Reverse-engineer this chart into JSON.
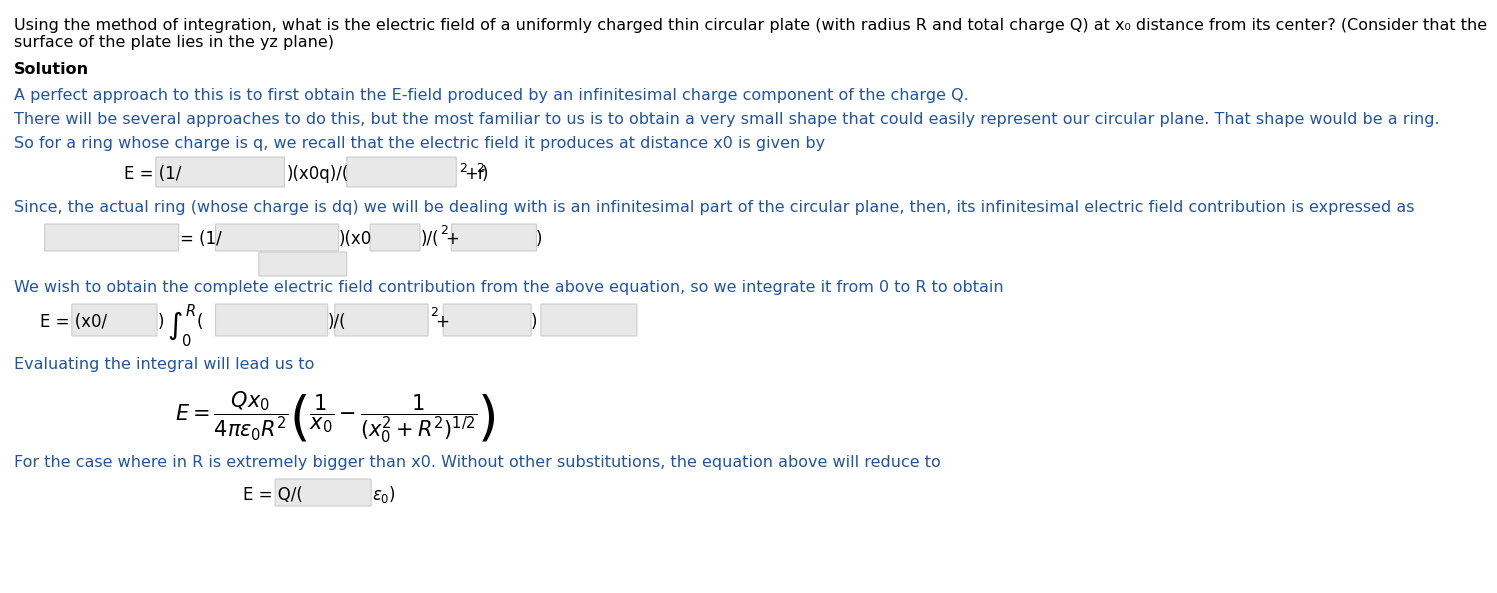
{
  "bg_color": "#ffffff",
  "text_color": "#2155a0",
  "bold_color": "#000000",
  "box_color": "#e8e8e8",
  "box_edge_color": "#cccccc",
  "title_text": "Using the method of integration, what is the electric field of a uniformly charged thin circular plate (with radius R and total charge Q) at x₀ distance from its center? (Consider that the\nsurface of the plate lies in the yz plane)",
  "solution_label": "Solution",
  "para1": "A perfect approach to this is to first obtain the E-field produced by an infinitesimal charge component of the charge Q.",
  "para2": "There will be several approaches to do this, but the most familiar to us is to obtain a very small shape that could easily represent our circular plane. That shape would be a ring.",
  "para3": "So for a ring whose charge is q, we recall that the electric field it produces at distance x0 is given by",
  "para4": "Since, the actual ring (whose charge is dq) we will be dealing with is an infinitesimal part of the circular plane, then, its infinitesimal electric field contribution is expressed as",
  "para5": "We wish to obtain the complete electric field contribution from the above equation, so we integrate it from 0 to R to obtain",
  "para6": "Evaluating the integral will lead us to",
  "para7": "For the case where in R is extremely bigger than x0. Without other substitutions, the equation above will reduce to"
}
